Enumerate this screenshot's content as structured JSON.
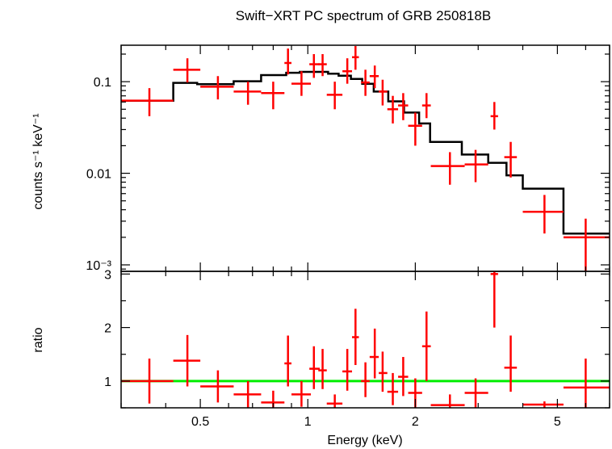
{
  "chart_data": [
    {
      "type": "scatter",
      "title": "Swift−XRT PC spectrum of GRB 250818B",
      "ylabel": "counts s⁻¹ keV⁻¹",
      "xscale": "log",
      "yscale": "log",
      "xlim": [
        0.3,
        7.0
      ],
      "ylim": [
        0.00085,
        0.25
      ],
      "yticks": [
        {
          "value": 0.001,
          "label": "10⁻³"
        },
        {
          "value": 0.01,
          "label": "0.01"
        },
        {
          "value": 0.1,
          "label": "0.1"
        }
      ],
      "colors": {
        "data": "#ff0000",
        "model": "#000000"
      },
      "model_step": [
        {
          "x0": 0.3,
          "x1": 0.42,
          "y": 0.062
        },
        {
          "x0": 0.42,
          "x1": 0.49,
          "y": 0.097
        },
        {
          "x0": 0.49,
          "x1": 0.62,
          "y": 0.094
        },
        {
          "x0": 0.62,
          "x1": 0.74,
          "y": 0.101
        },
        {
          "x0": 0.74,
          "x1": 0.87,
          "y": 0.118
        },
        {
          "x0": 0.87,
          "x1": 0.95,
          "y": 0.125
        },
        {
          "x0": 0.95,
          "x1": 1.14,
          "y": 0.128
        },
        {
          "x0": 1.14,
          "x1": 1.22,
          "y": 0.122
        },
        {
          "x0": 1.22,
          "x1": 1.32,
          "y": 0.116
        },
        {
          "x0": 1.32,
          "x1": 1.42,
          "y": 0.107
        },
        {
          "x0": 1.42,
          "x1": 1.53,
          "y": 0.095
        },
        {
          "x0": 1.53,
          "x1": 1.68,
          "y": 0.078
        },
        {
          "x0": 1.68,
          "x1": 1.86,
          "y": 0.061
        },
        {
          "x0": 1.86,
          "x1": 2.05,
          "y": 0.046
        },
        {
          "x0": 2.05,
          "x1": 2.2,
          "y": 0.035
        },
        {
          "x0": 2.2,
          "x1": 2.7,
          "y": 0.022
        },
        {
          "x0": 2.7,
          "x1": 3.2,
          "y": 0.016
        },
        {
          "x0": 3.2,
          "x1": 3.6,
          "y": 0.013
        },
        {
          "x0": 3.6,
          "x1": 4.0,
          "y": 0.0095
        },
        {
          "x0": 4.0,
          "x1": 5.2,
          "y": 0.0068
        },
        {
          "x0": 5.2,
          "x1": 7.0,
          "y": 0.0022
        }
      ],
      "points": [
        {
          "x": 0.36,
          "xlo": 0.3,
          "xhi": 0.42,
          "y": 0.062,
          "ylo": 0.042,
          "yhi": 0.085
        },
        {
          "x": 0.46,
          "xlo": 0.42,
          "xhi": 0.5,
          "y": 0.135,
          "ylo": 0.098,
          "yhi": 0.18
        },
        {
          "x": 0.56,
          "xlo": 0.5,
          "xhi": 0.62,
          "y": 0.088,
          "ylo": 0.064,
          "yhi": 0.115
        },
        {
          "x": 0.68,
          "xlo": 0.62,
          "xhi": 0.74,
          "y": 0.078,
          "ylo": 0.056,
          "yhi": 0.1
        },
        {
          "x": 0.8,
          "xlo": 0.74,
          "xhi": 0.86,
          "y": 0.075,
          "ylo": 0.05,
          "yhi": 0.1
        },
        {
          "x": 0.88,
          "xlo": 0.86,
          "xhi": 0.9,
          "y": 0.16,
          "ylo": 0.12,
          "yhi": 0.23
        },
        {
          "x": 0.96,
          "xlo": 0.9,
          "xhi": 1.02,
          "y": 0.095,
          "ylo": 0.07,
          "yhi": 0.13
        },
        {
          "x": 1.04,
          "xlo": 1.01,
          "xhi": 1.08,
          "y": 0.155,
          "ylo": 0.11,
          "yhi": 0.2
        },
        {
          "x": 1.1,
          "xlo": 1.07,
          "xhi": 1.13,
          "y": 0.155,
          "ylo": 0.115,
          "yhi": 0.2
        },
        {
          "x": 1.19,
          "xlo": 1.13,
          "xhi": 1.25,
          "y": 0.072,
          "ylo": 0.05,
          "yhi": 0.1
        },
        {
          "x": 1.29,
          "xlo": 1.25,
          "xhi": 1.33,
          "y": 0.13,
          "ylo": 0.095,
          "yhi": 0.18
        },
        {
          "x": 1.36,
          "xlo": 1.33,
          "xhi": 1.39,
          "y": 0.185,
          "ylo": 0.135,
          "yhi": 0.245
        },
        {
          "x": 1.45,
          "xlo": 1.41,
          "xhi": 1.49,
          "y": 0.098,
          "ylo": 0.07,
          "yhi": 0.135
        },
        {
          "x": 1.54,
          "xlo": 1.49,
          "xhi": 1.58,
          "y": 0.115,
          "ylo": 0.085,
          "yhi": 0.15
        },
        {
          "x": 1.62,
          "xlo": 1.58,
          "xhi": 1.67,
          "y": 0.078,
          "ylo": 0.055,
          "yhi": 0.105
        },
        {
          "x": 1.73,
          "xlo": 1.67,
          "xhi": 1.79,
          "y": 0.05,
          "ylo": 0.035,
          "yhi": 0.07
        },
        {
          "x": 1.85,
          "xlo": 1.79,
          "xhi": 1.91,
          "y": 0.055,
          "ylo": 0.038,
          "yhi": 0.075
        },
        {
          "x": 2.0,
          "xlo": 1.91,
          "xhi": 2.09,
          "y": 0.033,
          "ylo": 0.02,
          "yhi": 0.046
        },
        {
          "x": 2.15,
          "xlo": 2.09,
          "xhi": 2.21,
          "y": 0.055,
          "ylo": 0.04,
          "yhi": 0.075
        },
        {
          "x": 2.5,
          "xlo": 2.21,
          "xhi": 2.75,
          "y": 0.012,
          "ylo": 0.0075,
          "yhi": 0.017
        },
        {
          "x": 2.95,
          "xlo": 2.75,
          "xhi": 3.2,
          "y": 0.0125,
          "ylo": 0.008,
          "yhi": 0.018
        },
        {
          "x": 3.33,
          "xlo": 3.25,
          "xhi": 3.41,
          "y": 0.042,
          "ylo": 0.03,
          "yhi": 0.06
        },
        {
          "x": 3.7,
          "xlo": 3.55,
          "xhi": 3.85,
          "y": 0.015,
          "ylo": 0.009,
          "yhi": 0.022
        },
        {
          "x": 4.6,
          "xlo": 4.0,
          "xhi": 5.2,
          "y": 0.0038,
          "ylo": 0.0022,
          "yhi": 0.0058
        },
        {
          "x": 6.0,
          "xlo": 5.2,
          "xhi": 7.0,
          "y": 0.002,
          "ylo": 0.00085,
          "yhi": 0.0032
        }
      ]
    },
    {
      "type": "scatter",
      "xlabel": "Energy (keV)",
      "ylabel": "ratio",
      "xscale": "log",
      "xlim": [
        0.3,
        7.0
      ],
      "ylim": [
        0.5,
        3.05
      ],
      "xticks": [
        {
          "value": 0.5,
          "label": "0.5"
        },
        {
          "value": 1,
          "label": "1"
        },
        {
          "value": 2,
          "label": "2"
        },
        {
          "value": 5,
          "label": "5"
        }
      ],
      "yticks": [
        {
          "value": 1,
          "label": "1"
        },
        {
          "value": 2,
          "label": "2"
        },
        {
          "value": 3,
          "label": "3"
        }
      ],
      "reference_line": 1.0,
      "colors": {
        "data": "#ff0000",
        "reference": "#00ee00"
      },
      "points": [
        {
          "x": 0.36,
          "xlo": 0.3,
          "xhi": 0.42,
          "y": 1.0,
          "ylo": 0.58,
          "yhi": 1.42
        },
        {
          "x": 0.46,
          "xlo": 0.42,
          "xhi": 0.5,
          "y": 1.38,
          "ylo": 0.9,
          "yhi": 1.86
        },
        {
          "x": 0.56,
          "xlo": 0.5,
          "xhi": 0.62,
          "y": 0.9,
          "ylo": 0.6,
          "yhi": 1.2
        },
        {
          "x": 0.68,
          "xlo": 0.62,
          "xhi": 0.74,
          "y": 0.75,
          "ylo": 0.5,
          "yhi": 1.0
        },
        {
          "x": 0.8,
          "xlo": 0.74,
          "xhi": 0.86,
          "y": 0.6,
          "ylo": 0.45,
          "yhi": 0.82
        },
        {
          "x": 0.88,
          "xlo": 0.86,
          "xhi": 0.9,
          "y": 1.33,
          "ylo": 0.9,
          "yhi": 1.85
        },
        {
          "x": 0.96,
          "xlo": 0.9,
          "xhi": 1.02,
          "y": 0.75,
          "ylo": 0.52,
          "yhi": 1.0
        },
        {
          "x": 1.04,
          "xlo": 1.01,
          "xhi": 1.08,
          "y": 1.23,
          "ylo": 0.85,
          "yhi": 1.65
        },
        {
          "x": 1.1,
          "xlo": 1.07,
          "xhi": 1.13,
          "y": 1.2,
          "ylo": 0.85,
          "yhi": 1.6
        },
        {
          "x": 1.19,
          "xlo": 1.13,
          "xhi": 1.25,
          "y": 0.58,
          "ylo": 0.45,
          "yhi": 0.75
        },
        {
          "x": 1.29,
          "xlo": 1.25,
          "xhi": 1.33,
          "y": 1.18,
          "ylo": 0.82,
          "yhi": 1.6
        },
        {
          "x": 1.36,
          "xlo": 1.33,
          "xhi": 1.39,
          "y": 1.82,
          "ylo": 1.3,
          "yhi": 2.35
        },
        {
          "x": 1.45,
          "xlo": 1.41,
          "xhi": 1.49,
          "y": 1.0,
          "ylo": 0.7,
          "yhi": 1.35
        },
        {
          "x": 1.54,
          "xlo": 1.49,
          "xhi": 1.58,
          "y": 1.45,
          "ylo": 1.05,
          "yhi": 1.98
        },
        {
          "x": 1.62,
          "xlo": 1.58,
          "xhi": 1.67,
          "y": 1.15,
          "ylo": 0.8,
          "yhi": 1.55
        },
        {
          "x": 1.73,
          "xlo": 1.67,
          "xhi": 1.79,
          "y": 0.8,
          "ylo": 0.55,
          "yhi": 1.15
        },
        {
          "x": 1.85,
          "xlo": 1.79,
          "xhi": 1.91,
          "y": 1.08,
          "ylo": 0.72,
          "yhi": 1.45
        },
        {
          "x": 2.0,
          "xlo": 1.91,
          "xhi": 2.09,
          "y": 0.78,
          "ylo": 0.5,
          "yhi": 1.05
        },
        {
          "x": 2.15,
          "xlo": 2.09,
          "xhi": 2.21,
          "y": 1.65,
          "ylo": 1.0,
          "yhi": 2.3
        },
        {
          "x": 2.5,
          "xlo": 2.21,
          "xhi": 2.75,
          "y": 0.55,
          "ylo": 0.5,
          "yhi": 0.75
        },
        {
          "x": 2.95,
          "xlo": 2.75,
          "xhi": 3.2,
          "y": 0.78,
          "ylo": 0.5,
          "yhi": 1.05
        },
        {
          "x": 3.33,
          "xlo": 3.25,
          "xhi": 3.41,
          "y": 3.0,
          "ylo": 2.0,
          "yhi": 3.05
        },
        {
          "x": 3.7,
          "xlo": 3.55,
          "xhi": 3.85,
          "y": 1.25,
          "ylo": 0.8,
          "yhi": 1.85
        },
        {
          "x": 4.6,
          "xlo": 4.0,
          "xhi": 5.2,
          "y": 0.56,
          "ylo": 0.5,
          "yhi": 0.62
        },
        {
          "x": 6.0,
          "xlo": 5.2,
          "xhi": 7.0,
          "y": 0.88,
          "ylo": 0.5,
          "yhi": 1.42
        }
      ]
    }
  ]
}
